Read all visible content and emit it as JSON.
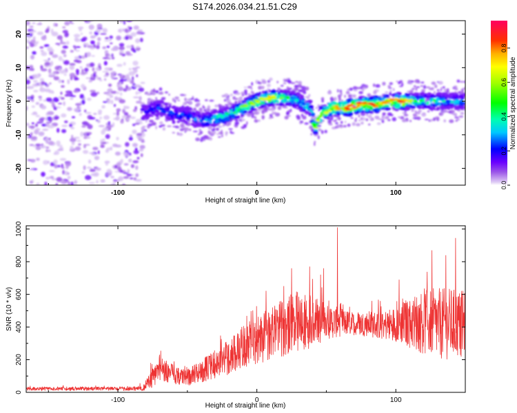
{
  "title": "S174.2026.034.21.51.C29",
  "chart_data": [
    {
      "type": "heatmap",
      "xlabel": "Height of straight line (km)",
      "ylabel": "Frequency (Hz)",
      "xlim": [
        -166,
        150
      ],
      "ylim": [
        -25,
        24
      ],
      "xticks": [
        -100,
        0,
        100
      ],
      "xtick_labels": [
        "-100",
        "0",
        "100"
      ],
      "yticks": [
        -20,
        -10,
        0,
        10,
        20
      ],
      "ytick_labels": [
        "-20",
        "-10",
        "0",
        "10",
        "20"
      ],
      "colorbar": {
        "label": "Normalized spectral amplitude",
        "range": [
          0.0,
          0.96
        ],
        "ticks": [
          0.0,
          0.2,
          0.4,
          0.6,
          0.8
        ],
        "tick_labels": [
          "0.0",
          "0.2",
          "0.4",
          "0.6",
          "0.8"
        ]
      },
      "description_points": {
        "noise_region_x": [
          -166,
          -82
        ],
        "ridge": {
          "x": [
            -82,
            -70,
            -60,
            -50,
            -40,
            -30,
            -20,
            -10,
            0,
            10,
            20,
            30,
            38,
            42,
            46,
            55,
            65,
            75,
            85,
            95,
            105,
            115,
            125,
            135,
            145,
            150
          ],
          "frequency": [
            -3,
            -2,
            -4,
            -4,
            -6,
            -5,
            -4,
            -2,
            0,
            1,
            1,
            0,
            -2,
            -8,
            -4,
            -2,
            -2,
            -1,
            -1,
            0,
            0,
            0,
            0,
            0,
            0,
            0
          ],
          "amplitude": [
            0.25,
            0.3,
            0.3,
            0.3,
            0.35,
            0.5,
            0.5,
            0.6,
            0.65,
            0.75,
            0.6,
            0.4,
            0.5,
            0.7,
            0.6,
            0.8,
            0.9,
            0.85,
            0.85,
            0.8,
            0.9,
            0.5,
            0.5,
            0.45,
            0.4,
            0.35
          ]
        }
      }
    },
    {
      "type": "line",
      "xlabel": "Height of straight line (km)",
      "ylabel": "SNR (10 * v/v)",
      "xlim": [
        -166,
        150
      ],
      "ylim": [
        0,
        1020
      ],
      "xticks": [
        -100,
        0,
        100
      ],
      "xtick_labels": [
        "-100",
        "0",
        "100"
      ],
      "yticks": [
        0,
        200,
        400,
        600,
        800,
        1000
      ],
      "ytick_labels": [
        "0",
        "200",
        "400",
        "600",
        "800",
        "1000"
      ],
      "color": "#ee3333",
      "envelope": {
        "x": [
          -166,
          -90,
          -82,
          -75,
          -70,
          -65,
          -60,
          -55,
          -50,
          -40,
          -30,
          -20,
          -10,
          0,
          10,
          20,
          30,
          40,
          50,
          60,
          70,
          80,
          90,
          100,
          110,
          120,
          130,
          140,
          150
        ],
        "mean": [
          22,
          22,
          25,
          90,
          150,
          130,
          110,
          100,
          90,
          130,
          170,
          220,
          280,
          320,
          360,
          400,
          440,
          440,
          430,
          430,
          420,
          420,
          410,
          420,
          430,
          430,
          420,
          420,
          420
        ],
        "spread": [
          12,
          12,
          20,
          60,
          90,
          70,
          60,
          55,
          50,
          70,
          90,
          110,
          130,
          150,
          160,
          180,
          190,
          170,
          110,
          90,
          70,
          80,
          90,
          110,
          160,
          200,
          220,
          220,
          200
        ]
      },
      "peaks": [
        {
          "x": 58,
          "y": 1010
        },
        {
          "x": 143,
          "y": 945
        },
        {
          "x": 126,
          "y": 870
        },
        {
          "x": 136,
          "y": 840
        },
        {
          "x": 48,
          "y": 760
        },
        {
          "x": 38,
          "y": 770
        },
        {
          "x": 25,
          "y": 760
        }
      ]
    }
  ]
}
